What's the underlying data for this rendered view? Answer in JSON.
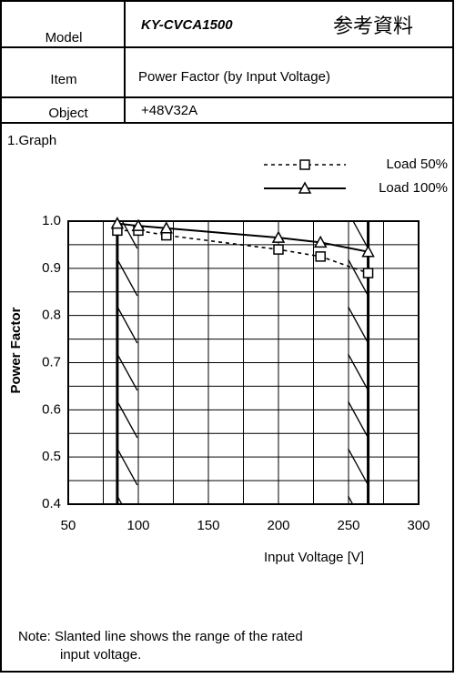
{
  "header": {
    "model_label": "Model",
    "model": "KY-CVCA1500",
    "reference": "参考資料",
    "item_label": "Item",
    "item": "Power Factor (by Input Voltage)",
    "object_label": "Object",
    "object": "+48V32A"
  },
  "section": "1.Graph",
  "chart_data": {
    "type": "line",
    "x_label": "Input Voltage  [V]",
    "y_label": "Power Factor",
    "xlim": [
      50,
      300
    ],
    "xticks": [
      50,
      100,
      150,
      200,
      250,
      300
    ],
    "ylim": [
      0.4,
      1.0
    ],
    "yticks": [
      {
        "value": 1.0,
        "label": "1.0"
      },
      0.9,
      0.8,
      0.7,
      0.6,
      0.5,
      0.4
    ],
    "xgrid": [
      50,
      75,
      100,
      125,
      150,
      175,
      200,
      225,
      250,
      275,
      300
    ],
    "ygrid": [
      0.4,
      0.45,
      0.5,
      0.55,
      0.6,
      0.65,
      0.7,
      0.75,
      0.8,
      0.85,
      0.9,
      0.95,
      1.0
    ],
    "rated_range": [
      85,
      264
    ],
    "legend": "upper right",
    "series": [
      {
        "name": "Load  50%",
        "color": "#000000",
        "dashed": true,
        "marker": "square",
        "x": [
          85,
          100,
          120,
          200,
          230,
          264
        ],
        "values": [
          0.98,
          0.98,
          0.97,
          0.94,
          0.925,
          0.89
        ]
      },
      {
        "name": "Load 100%",
        "color": "#000000",
        "dashed": false,
        "marker": "triangle",
        "x": [
          85,
          100,
          120,
          200,
          230,
          264
        ],
        "values": [
          0.995,
          0.99,
          0.985,
          0.965,
          0.955,
          0.935
        ]
      }
    ]
  },
  "note": [
    "Note: Slanted line shows the range of the rated",
    "input voltage."
  ]
}
